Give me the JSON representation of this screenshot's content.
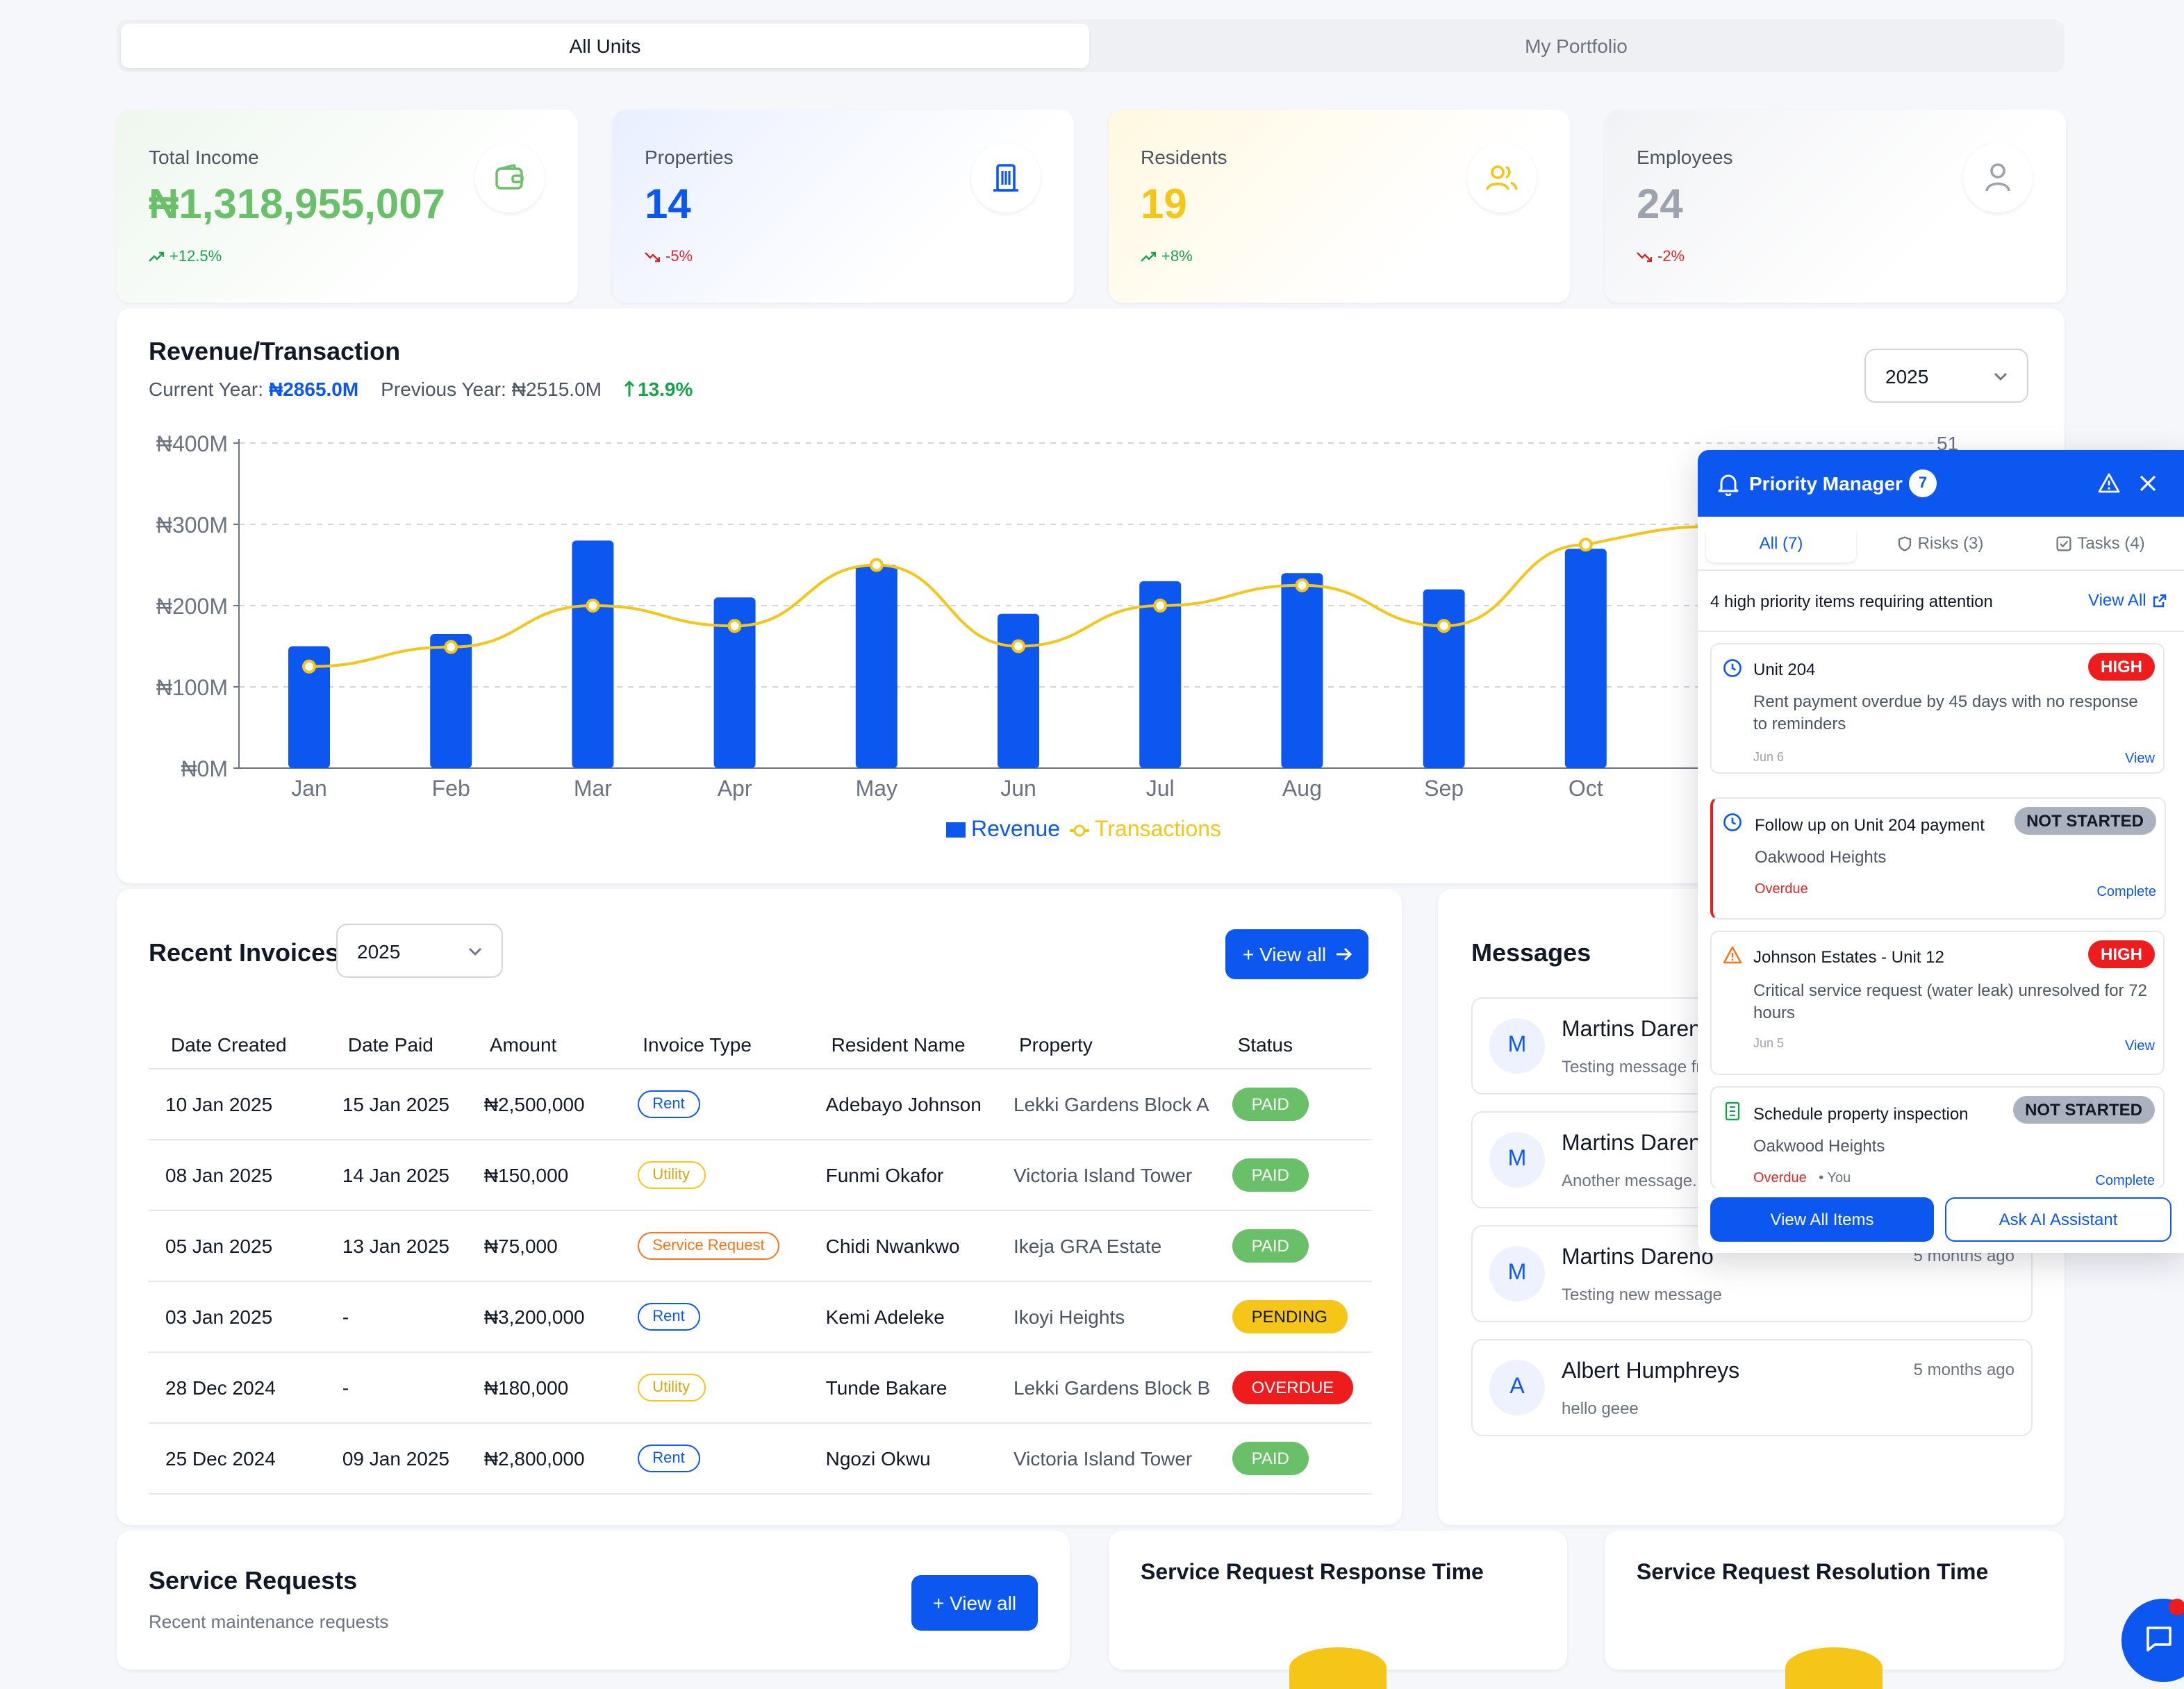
{
  "tabs": {
    "all_units": "All Units",
    "my_portfolio": "My Portfolio"
  },
  "stats": [
    {
      "label": "Total Income",
      "value": "₦1,318,955,007",
      "change": "+12.5%",
      "icon": "wallet-icon"
    },
    {
      "label": "Properties",
      "value": "14",
      "change": "-5%",
      "icon": "building-icon"
    },
    {
      "label": "Residents",
      "value": "19",
      "change": "+8%",
      "icon": "users-icon"
    },
    {
      "label": "Employees",
      "value": "24",
      "change": "-2%",
      "icon": "user-icon"
    }
  ],
  "colors": {
    "primary": "#0b57f0",
    "revenue": "#0b57f0",
    "transactions": "#f5c518",
    "green": "#16a34a",
    "red": "#dc2626",
    "high": "#ee1c1c"
  },
  "revenue": {
    "title": "Revenue/Transaction",
    "current_label": "Current Year:",
    "current_value": "₦2865.0M",
    "previous_label": "Previous Year:",
    "previous_value": "₦2515.0M",
    "growth": "13.9%",
    "year": "2025",
    "right_axis_partial": "51"
  },
  "chart_data": {
    "type": "bar",
    "categories": [
      "Jan",
      "Feb",
      "Mar",
      "Apr",
      "May",
      "Jun",
      "Jul",
      "Aug",
      "Sep",
      "Oct"
    ],
    "series": [
      {
        "name": "Revenue",
        "values": [
          150,
          165,
          280,
          210,
          250,
          190,
          230,
          240,
          220,
          270
        ]
      },
      {
        "name": "Transactions",
        "type": "line",
        "values": [
          125,
          149,
          200,
          175,
          250,
          150,
          200,
          225,
          175,
          275
        ]
      }
    ],
    "y_ticks": [
      "₦0M",
      "₦100M",
      "₦200M",
      "₦300M",
      "₦400M"
    ],
    "ylim": [
      0,
      400
    ],
    "grid": true,
    "legend": "bottom"
  },
  "invoices": {
    "title": "Recent Invoices",
    "year": "2025",
    "view_all": "+ View all",
    "headers": [
      "Date Created",
      "Date Paid",
      "Amount",
      "Invoice Type",
      "Resident Name",
      "Property",
      "Status"
    ],
    "rows": [
      {
        "created": "10 Jan 2025",
        "paid": "15 Jan 2025",
        "amount": "₦2,500,000",
        "type": "Rent",
        "resident": "Adebayo Johnson",
        "property": "Lekki Gardens Block A",
        "status": "PAID"
      },
      {
        "created": "08 Jan 2025",
        "paid": "14 Jan 2025",
        "amount": "₦150,000",
        "type": "Utility",
        "resident": "Funmi Okafor",
        "property": "Victoria Island Tower",
        "status": "PAID"
      },
      {
        "created": "05 Jan 2025",
        "paid": "13 Jan 2025",
        "amount": "₦75,000",
        "type": "Service Request",
        "resident": "Chidi Nwankwo",
        "property": "Ikeja GRA Estate",
        "status": "PAID"
      },
      {
        "created": "03 Jan 2025",
        "paid": "-",
        "amount": "₦3,200,000",
        "type": "Rent",
        "resident": "Kemi Adeleke",
        "property": "Ikoyi Heights",
        "status": "PENDING"
      },
      {
        "created": "28 Dec 2024",
        "paid": "-",
        "amount": "₦180,000",
        "type": "Utility",
        "resident": "Tunde Bakare",
        "property": "Lekki Gardens Block B",
        "status": "OVERDUE"
      },
      {
        "created": "25 Dec 2024",
        "paid": "09 Jan 2025",
        "amount": "₦2,800,000",
        "type": "Rent",
        "resident": "Ngozi Okwu",
        "property": "Victoria Island Tower",
        "status": "PAID"
      }
    ]
  },
  "messages": {
    "title": "Messages",
    "items": [
      {
        "initial": "M",
        "name": "Martins Dareno",
        "text": "Testing message fr",
        "time": ""
      },
      {
        "initial": "M",
        "name": "Martins Dareno",
        "text": "Another message...",
        "time": ""
      },
      {
        "initial": "M",
        "name": "Martins Dareno",
        "text": "Testing new message",
        "time": "5 months ago"
      },
      {
        "initial": "A",
        "name": "Albert Humphreys",
        "text": "hello geee",
        "time": "5 months ago"
      }
    ]
  },
  "service_requests": {
    "title": "Service Requests",
    "subtitle": "Recent maintenance requests",
    "view_all": "+ View all"
  },
  "response_time": {
    "title": "Service Request Response Time"
  },
  "resolution_time": {
    "title": "Service Request Resolution Time"
  },
  "priority": {
    "title": "Priority Manager",
    "count": "7",
    "tabs": [
      "All (7)",
      "Risks (3)",
      "Tasks (4)"
    ],
    "summary": "4 high priority items requiring attention",
    "view_all": "View All",
    "items": [
      {
        "title": "Unit 204",
        "badge": "HIGH",
        "desc": "Rent payment overdue by 45 days with no response to reminders",
        "date": "Jun 6",
        "action": "View",
        "icon": "clock-icon"
      },
      {
        "title": "Follow up on Unit 204 payment",
        "badge": "NOT STARTED",
        "desc": "Oakwood Heights",
        "date": "Overdue",
        "action": "Complete",
        "icon": "clock-icon"
      },
      {
        "title": "Johnson Estates - Unit 12",
        "badge": "HIGH",
        "desc": "Critical service request (water leak) unresolved for 72 hours",
        "date": "Jun 5",
        "action": "View",
        "icon": "warning-icon"
      },
      {
        "title": "Schedule property inspection",
        "badge": "NOT STARTED",
        "desc": "Oakwood Heights",
        "date": "Overdue",
        "extra": "• You",
        "action": "Complete",
        "icon": "building-icon"
      }
    ],
    "btn_view_all": "View All Items",
    "btn_ai": "Ask AI Assistant"
  }
}
